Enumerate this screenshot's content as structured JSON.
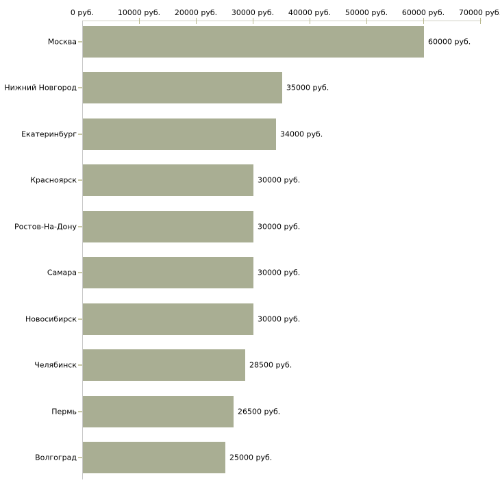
{
  "chart_data": {
    "type": "bar",
    "orientation": "horizontal",
    "unit": "руб.",
    "categories": [
      "Москва",
      "Нижний Новгород",
      "Екатеринбург",
      "Красноярск",
      "Ростов-На-Дону",
      "Самара",
      "Новосибирск",
      "Челябинск",
      "Пермь",
      "Волгоград"
    ],
    "values": [
      60000,
      35000,
      34000,
      30000,
      30000,
      30000,
      30000,
      28500,
      26500,
      25000
    ],
    "value_labels": [
      "60000 руб.",
      "35000 руб.",
      "34000 руб.",
      "30000 руб.",
      "30000 руб.",
      "30000 руб.",
      "30000 руб.",
      "28500 руб.",
      "26500 руб.",
      "25000 руб."
    ],
    "x_tick_values": [
      0,
      10000,
      20000,
      30000,
      40000,
      50000,
      60000,
      70000
    ],
    "x_tick_labels": [
      "0 руб.",
      "10000 руб.",
      "20000 руб.",
      "30000 руб.",
      "40000 руб.",
      "50000 руб.",
      "60000 руб.",
      "70000 руб."
    ],
    "xlim": [
      0,
      70000
    ],
    "grid": "off",
    "legend": "none",
    "colors": {
      "bar": "#a9ae93",
      "x_axis_line": "#cdcdc2",
      "x_tick": "#b9b98e",
      "y_axis_line": "#c8c8c8",
      "category_tick": "#c8c8a4",
      "text": "#000000",
      "background": "#ffffff"
    }
  }
}
